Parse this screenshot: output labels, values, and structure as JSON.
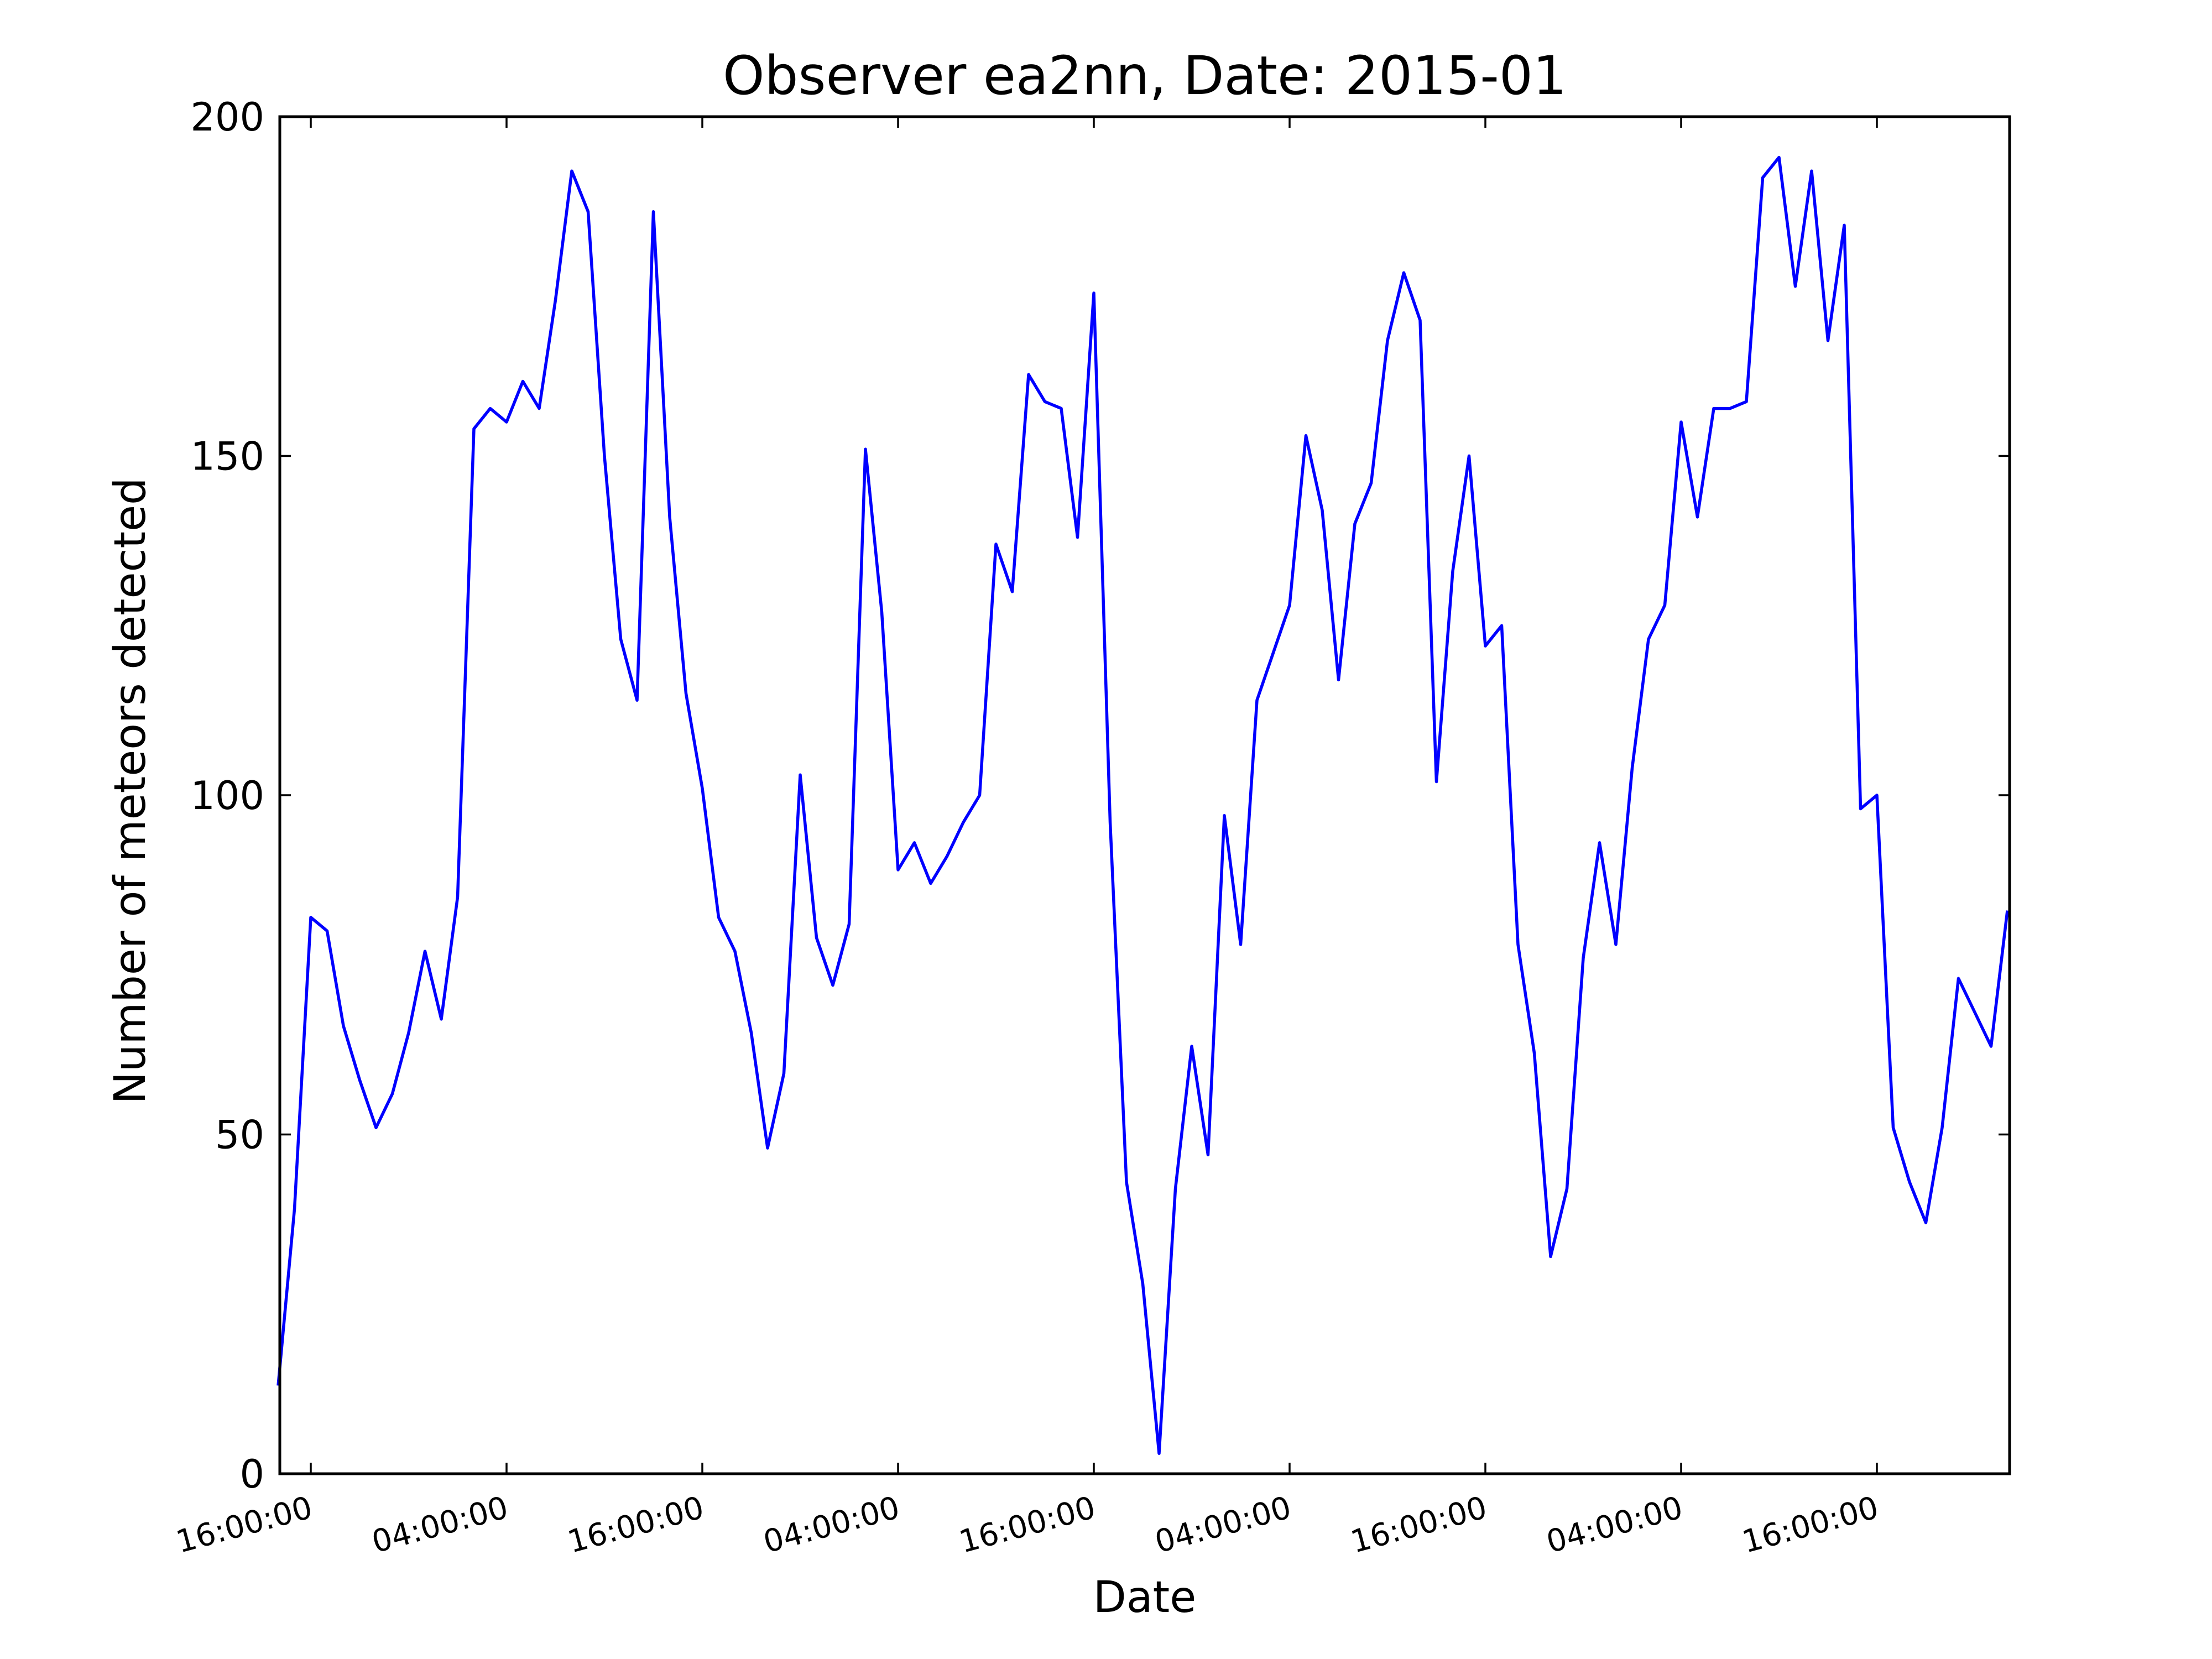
{
  "chart_data": {
    "type": "line",
    "title": "Observer ea2nn, Date: 2015-01",
    "xlabel": "Date",
    "ylabel": "Number of meteors detected",
    "ylim": [
      0,
      200
    ],
    "yticks": [
      "0",
      "50",
      "100",
      "150",
      "200"
    ],
    "xticks": [
      "16:00:00",
      "04:00:00",
      "16:00:00",
      "04:00:00",
      "16:00:00",
      "04:00:00",
      "16:00:00",
      "04:00:00",
      "16:00:00"
    ],
    "grid": false,
    "legend": "none",
    "series": [
      {
        "color": "#0000ff",
        "x": [
          "2015-01-01 14:00",
          "2015-01-01 15:00",
          "2015-01-01 16:00",
          "2015-01-01 17:00",
          "2015-01-01 18:00",
          "2015-01-01 19:00",
          "2015-01-01 20:00",
          "2015-01-01 21:00",
          "2015-01-01 22:00",
          "2015-01-01 23:00",
          "2015-01-02 00:00",
          "2015-01-02 01:00",
          "2015-01-02 02:00",
          "2015-01-02 03:00",
          "2015-01-02 04:00",
          "2015-01-02 05:00",
          "2015-01-02 06:00",
          "2015-01-02 07:00",
          "2015-01-02 08:00",
          "2015-01-02 09:00",
          "2015-01-02 10:00",
          "2015-01-02 11:00",
          "2015-01-02 12:00",
          "2015-01-02 13:00",
          "2015-01-02 14:00",
          "2015-01-02 15:00",
          "2015-01-02 16:00",
          "2015-01-02 17:00",
          "2015-01-02 18:00",
          "2015-01-02 19:00",
          "2015-01-02 20:00",
          "2015-01-02 21:00",
          "2015-01-02 22:00",
          "2015-01-02 23:00",
          "2015-01-03 00:00",
          "2015-01-03 01:00",
          "2015-01-03 02:00",
          "2015-01-03 03:00",
          "2015-01-03 04:00",
          "2015-01-03 05:00",
          "2015-01-03 06:00",
          "2015-01-03 07:00",
          "2015-01-03 08:00",
          "2015-01-03 09:00",
          "2015-01-03 10:00",
          "2015-01-03 11:00",
          "2015-01-03 12:00",
          "2015-01-03 13:00",
          "2015-01-03 14:00",
          "2015-01-03 15:00",
          "2015-01-03 16:00",
          "2015-01-03 17:00",
          "2015-01-03 18:00",
          "2015-01-03 19:00",
          "2015-01-03 20:00",
          "2015-01-03 21:00",
          "2015-01-03 22:00",
          "2015-01-03 23:00",
          "2015-01-04 00:00",
          "2015-01-04 01:00",
          "2015-01-04 02:00",
          "2015-01-04 03:00",
          "2015-01-04 04:00",
          "2015-01-04 05:00",
          "2015-01-04 06:00",
          "2015-01-04 07:00",
          "2015-01-04 08:00",
          "2015-01-04 09:00",
          "2015-01-04 10:00",
          "2015-01-04 11:00",
          "2015-01-04 12:00",
          "2015-01-04 13:00",
          "2015-01-04 14:00",
          "2015-01-04 15:00",
          "2015-01-04 16:00",
          "2015-01-04 17:00",
          "2015-01-04 18:00",
          "2015-01-04 19:00",
          "2015-01-04 20:00",
          "2015-01-04 21:00",
          "2015-01-04 22:00",
          "2015-01-04 23:00",
          "2015-01-05 00:00",
          "2015-01-05 01:00",
          "2015-01-05 02:00",
          "2015-01-05 03:00",
          "2015-01-05 04:00",
          "2015-01-05 05:00",
          "2015-01-05 06:00",
          "2015-01-05 07:00",
          "2015-01-05 08:00",
          "2015-01-05 09:00",
          "2015-01-05 10:00",
          "2015-01-05 11:00",
          "2015-01-05 12:00",
          "2015-01-05 13:00",
          "2015-01-05 14:00",
          "2015-01-05 15:00",
          "2015-01-05 16:00",
          "2015-01-05 17:00",
          "2015-01-05 18:00",
          "2015-01-05 19:00",
          "2015-01-05 20:00",
          "2015-01-05 21:00",
          "2015-01-05 22:00",
          "2015-01-05 23:00",
          "2015-01-06 00:00"
        ],
        "y": [
          13,
          39,
          82,
          80,
          66,
          58,
          51,
          56,
          65,
          77,
          67,
          85,
          154,
          157,
          155,
          161,
          157,
          173,
          192,
          186,
          150,
          123,
          114,
          186,
          141,
          115,
          101,
          82,
          77,
          65,
          48,
          59,
          103,
          79,
          72,
          81,
          151,
          127,
          89,
          93,
          87,
          91,
          96,
          100,
          137,
          130,
          162,
          158,
          157,
          138,
          174,
          96,
          43,
          28,
          3,
          42,
          63,
          47,
          97,
          78,
          114,
          121,
          128,
          153,
          142,
          117,
          140,
          146,
          167,
          177,
          170,
          102,
          133,
          150,
          122,
          125,
          78,
          62,
          32,
          42,
          76,
          93,
          78,
          104,
          123,
          128,
          155,
          141,
          157,
          157,
          158,
          191,
          194,
          175,
          192,
          167,
          184,
          98,
          100,
          51,
          43,
          37,
          51,
          73,
          68,
          63,
          83
        ]
      }
    ]
  }
}
